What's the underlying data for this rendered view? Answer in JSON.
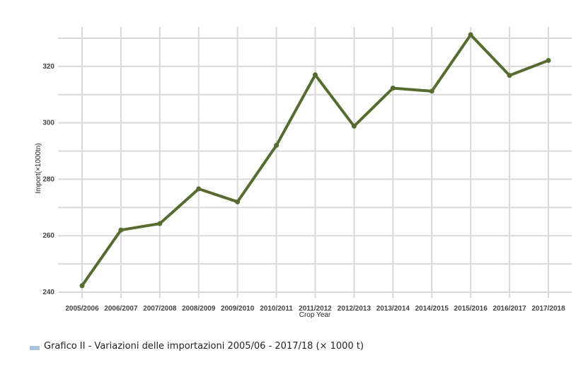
{
  "chart_data": {
    "type": "line",
    "categories": [
      "2005/2006",
      "2006/2007",
      "2007/2008",
      "2008/2009",
      "2009/2010",
      "2010/2011",
      "2011/2012",
      "2012/2013",
      "2013/2014",
      "2014/2015",
      "2015/2016",
      "2016/2017",
      "2017/2018"
    ],
    "series": [
      {
        "values": [
          242.3,
          262.0,
          264.3,
          276.6,
          272.0,
          292.0,
          317.0,
          298.8,
          312.3,
          311.2,
          331.2,
          316.8,
          322.1
        ]
      }
    ],
    "xlabel": "Crop Year",
    "ylabel": "Import(×1000tn)",
    "ylim": [
      238,
      336
    ],
    "yticks": [
      240,
      260,
      280,
      300,
      320
    ],
    "grid": true,
    "line_color": "#556b2f"
  },
  "caption": {
    "text": "Grafico II - Variazioni delle importazioni 2005/06 - 2017/18 (× 1000 t)",
    "marker_color": "#a9c4d9"
  }
}
